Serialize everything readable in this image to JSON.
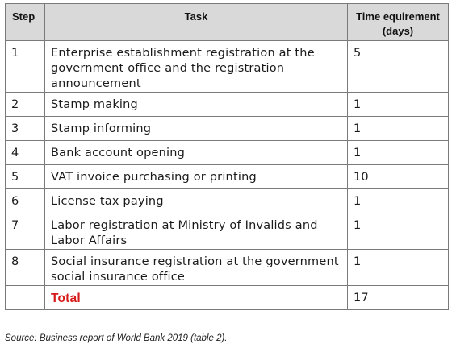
{
  "table": {
    "headers": {
      "step": "Step",
      "task": "Task",
      "time_line1": "Time equirement",
      "time_line2": "(days)"
    },
    "rows": [
      {
        "step": "1",
        "task": "Enterprise establishment registration at the government office and the registration announcement",
        "days": "5"
      },
      {
        "step": "2",
        "task": "Stamp making",
        "days": "1"
      },
      {
        "step": "3",
        "task": "Stamp informing",
        "days": "1"
      },
      {
        "step": "4",
        "task": "Bank account opening",
        "days": "1"
      },
      {
        "step": "5",
        "task": "VAT invoice purchasing or printing",
        "days": "10"
      },
      {
        "step": "6",
        "task": "License tax paying",
        "days": "1"
      },
      {
        "step": "7",
        "task": "Labor registration at Ministry of Invalids and Labor Affairs",
        "days": "1"
      },
      {
        "step": "8",
        "task": "Social insurance registration at the government social insurance office",
        "days": "1"
      }
    ],
    "total": {
      "label": "Total",
      "days": "17",
      "label_color": "#d71a1a"
    }
  },
  "source": "Source: Business report of World Bank 2019 (table 2)."
}
